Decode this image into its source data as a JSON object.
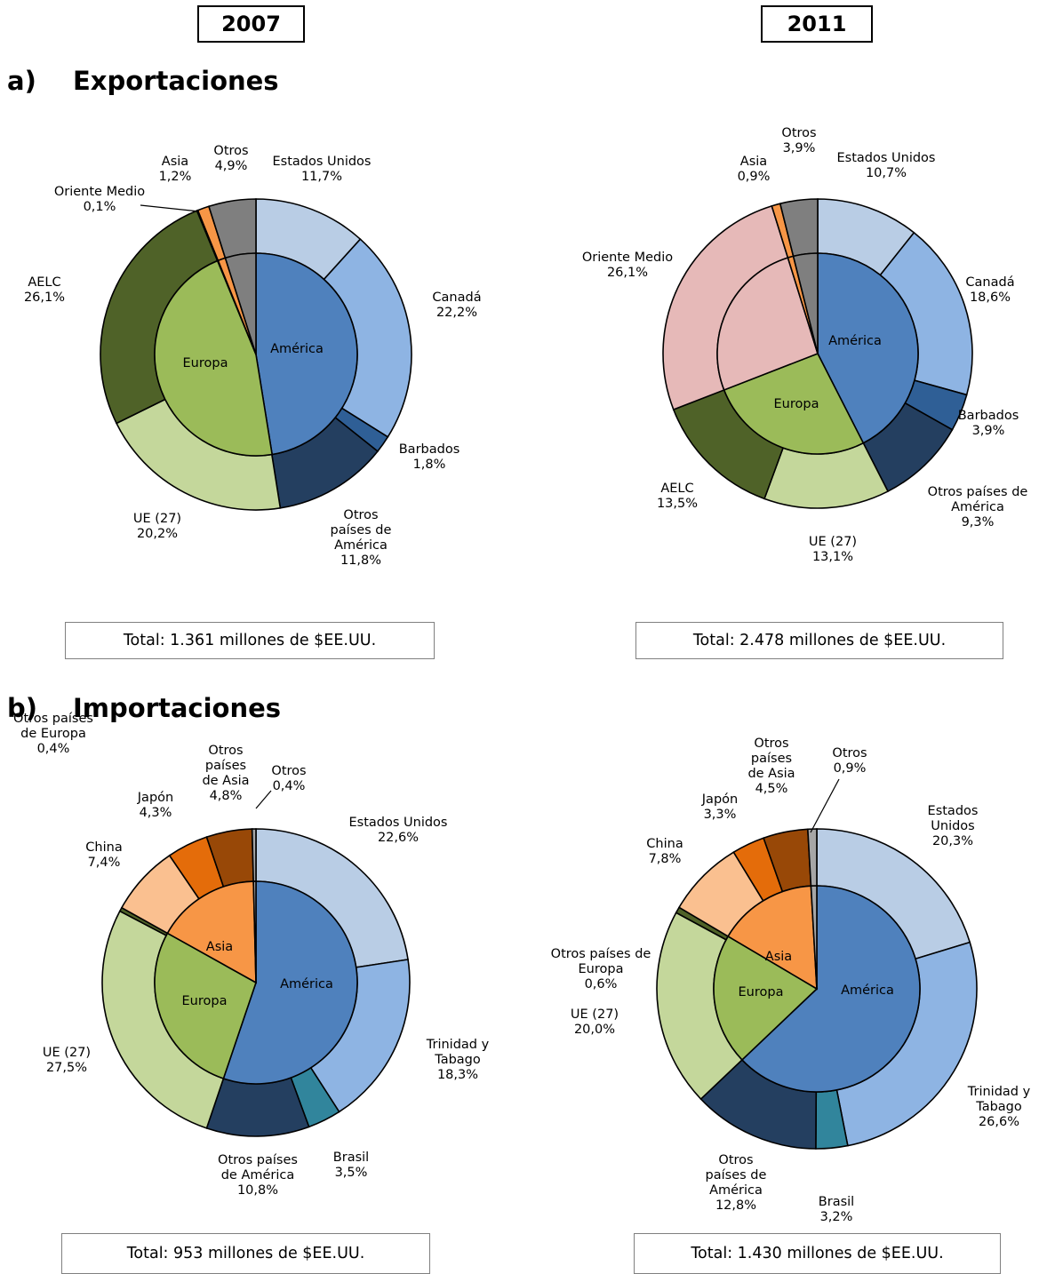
{
  "years": [
    "2007",
    "2011"
  ],
  "sections": [
    {
      "letter": "a)",
      "title": "Exportaciones"
    },
    {
      "letter": "b)",
      "title": "Importaciones"
    }
  ],
  "totals": {
    "exp2007": "Total: 1.361 millones de $EE.UU.",
    "exp2011": "Total: 2.478 millones de $EE.UU.",
    "imp2007": "Total: 953 millones de $EE.UU.",
    "imp2011": "Total: 1.430 millones de $EE.UU."
  },
  "colors": {
    "america_inner": "#4f81bd",
    "europa_inner": "#9bbb59",
    "asia_inner": "#f79646",
    "estados_unidos": "#b9cde5",
    "canada": "#8eb4e3",
    "trinidad": "#8eb4e3",
    "barbados": "#2f5f96",
    "brasil": "#31859c",
    "otros_america": "#243f60",
    "ue27": "#c4d79b",
    "aelc": "#4f6228",
    "otros_europa": "#4f6228",
    "oriente_medio": "#e6b9b8",
    "china": "#fac090",
    "japon": "#e46c0a",
    "otros_asia": "#984807",
    "asia_exp": "#f79646",
    "otros": "#7f7f7f",
    "otros_imp": "#a6a6a6"
  },
  "chart_data": [
    {
      "type": "pie",
      "id": "exp2007",
      "inner": [
        {
          "name": "América",
          "value": 47.5,
          "color": "#4f81bd"
        },
        {
          "name": "Europa",
          "value": 46.4,
          "color": "#9bbb59"
        },
        {
          "name": "",
          "value": 0.1,
          "color": "#e6b9b8"
        },
        {
          "name": "",
          "value": 1.2,
          "color": "#f79646"
        },
        {
          "name": "",
          "value": 4.9,
          "color": "#7f7f7f"
        }
      ],
      "outer": [
        {
          "name": "Estados Unidos",
          "value": 11.7,
          "color": "#b9cde5"
        },
        {
          "name": "Canadá",
          "value": 22.2,
          "color": "#8eb4e3"
        },
        {
          "name": "Barbados",
          "value": 1.8,
          "color": "#2f5f96"
        },
        {
          "name": "Otros países de América",
          "value": 11.8,
          "color": "#243f60"
        },
        {
          "name": "UE (27)",
          "value": 20.2,
          "color": "#c4d79b"
        },
        {
          "name": "AELC",
          "value": 26.1,
          "color": "#4f6228"
        },
        {
          "name": "Oriente Medio",
          "value": 0.1,
          "color": "#e6b9b8"
        },
        {
          "name": "Asia",
          "value": 1.2,
          "color": "#f79646"
        },
        {
          "name": "Otros",
          "value": 4.9,
          "color": "#7f7f7f"
        }
      ],
      "labels": [
        {
          "lines": [
            "Estados Unidos",
            "11,7%"
          ]
        },
        {
          "lines": [
            "Canadá",
            "22,2%"
          ]
        },
        {
          "lines": [
            "Barbados",
            "1,8%"
          ]
        },
        {
          "lines": [
            "Otros",
            "países de",
            "América",
            "11,8%"
          ]
        },
        {
          "lines": [
            "UE (27)",
            "20,2%"
          ]
        },
        {
          "lines": [
            "AELC",
            "26,1%"
          ]
        },
        {
          "lines": [
            "Oriente Medio",
            "0,1%"
          ]
        },
        {
          "lines": [
            "Asia",
            "1,2%"
          ]
        },
        {
          "lines": [
            "Otros",
            "4,9%"
          ]
        }
      ],
      "inner_labels": [
        "América",
        "Europa"
      ]
    },
    {
      "type": "pie",
      "id": "exp2011",
      "inner": [
        {
          "name": "América",
          "value": 42.5,
          "color": "#4f81bd"
        },
        {
          "name": "Europa",
          "value": 26.6,
          "color": "#9bbb59"
        },
        {
          "name": "",
          "value": 26.1,
          "color": "#e6b9b8"
        },
        {
          "name": "",
          "value": 0.9,
          "color": "#f79646"
        },
        {
          "name": "",
          "value": 3.9,
          "color": "#7f7f7f"
        }
      ],
      "outer": [
        {
          "name": "Estados Unidos",
          "value": 10.7,
          "color": "#b9cde5"
        },
        {
          "name": "Canadá",
          "value": 18.6,
          "color": "#8eb4e3"
        },
        {
          "name": "Barbados",
          "value": 3.9,
          "color": "#2f5f96"
        },
        {
          "name": "Otros países de América",
          "value": 9.3,
          "color": "#243f60"
        },
        {
          "name": "UE (27)",
          "value": 13.1,
          "color": "#c4d79b"
        },
        {
          "name": "AELC",
          "value": 13.5,
          "color": "#4f6228"
        },
        {
          "name": "Oriente Medio",
          "value": 26.1,
          "color": "#e6b9b8"
        },
        {
          "name": "Asia",
          "value": 0.9,
          "color": "#f79646"
        },
        {
          "name": "Otros",
          "value": 3.9,
          "color": "#7f7f7f"
        }
      ],
      "labels": [
        {
          "lines": [
            "Estados Unidos",
            "10,7%"
          ]
        },
        {
          "lines": [
            "Canadá",
            "18,6%"
          ]
        },
        {
          "lines": [
            "Barbados",
            "3,9%"
          ]
        },
        {
          "lines": [
            "Otros países de",
            "América",
            "9,3%"
          ]
        },
        {
          "lines": [
            "UE (27)",
            "13,1%"
          ]
        },
        {
          "lines": [
            "AELC",
            "13,5%"
          ]
        },
        {
          "lines": [
            "Oriente Medio",
            "26,1%"
          ]
        },
        {
          "lines": [
            "Asia",
            "0,9%"
          ]
        },
        {
          "lines": [
            "Otros",
            "3,9%"
          ]
        }
      ],
      "inner_labels": [
        "América",
        "Europa"
      ]
    },
    {
      "type": "pie",
      "id": "imp2007",
      "inner": [
        {
          "name": "América",
          "value": 55.2,
          "color": "#4f81bd"
        },
        {
          "name": "Europa",
          "value": 27.9,
          "color": "#9bbb59"
        },
        {
          "name": "Asia",
          "value": 16.5,
          "color": "#f79646"
        },
        {
          "name": "",
          "value": 0.4,
          "color": "#a6a6a6"
        }
      ],
      "outer": [
        {
          "name": "Estados Unidos",
          "value": 22.6,
          "color": "#b9cde5"
        },
        {
          "name": "Trinidad y Tabago",
          "value": 18.3,
          "color": "#8eb4e3"
        },
        {
          "name": "Brasil",
          "value": 3.5,
          "color": "#31859c"
        },
        {
          "name": "Otros países de América",
          "value": 10.8,
          "color": "#243f60"
        },
        {
          "name": "UE (27)",
          "value": 27.5,
          "color": "#c4d79b"
        },
        {
          "name": "Otros países de Europa",
          "value": 0.4,
          "color": "#4f6228"
        },
        {
          "name": "China",
          "value": 7.4,
          "color": "#fac090"
        },
        {
          "name": "Japón",
          "value": 4.3,
          "color": "#e46c0a"
        },
        {
          "name": "Otros países de Asia",
          "value": 4.8,
          "color": "#984807"
        },
        {
          "name": "Otros",
          "value": 0.4,
          "color": "#a6a6a6"
        }
      ],
      "labels": [
        {
          "lines": [
            "Estados Unidos",
            "22,6%"
          ]
        },
        {
          "lines": [
            "Trinidad y",
            "Tabago",
            "18,3%"
          ]
        },
        {
          "lines": [
            "Brasil",
            "3,5%"
          ]
        },
        {
          "lines": [
            "Otros países",
            "de América",
            "10,8%"
          ]
        },
        {
          "lines": [
            "UE (27)",
            "27,5%"
          ]
        },
        {
          "lines": [
            "Otros países",
            "de Europa",
            "0,4%"
          ]
        },
        {
          "lines": [
            "China",
            "7,4%"
          ]
        },
        {
          "lines": [
            "Japón",
            "4,3%"
          ]
        },
        {
          "lines": [
            "Otros",
            "países",
            "de Asia",
            "4,8%"
          ]
        },
        {
          "lines": [
            "Otros",
            "0,4%"
          ]
        }
      ],
      "inner_labels": [
        "América",
        "Europa",
        "Asia"
      ]
    },
    {
      "type": "pie",
      "id": "imp2011",
      "inner": [
        {
          "name": "América",
          "value": 62.9,
          "color": "#4f81bd"
        },
        {
          "name": "Europa",
          "value": 20.6,
          "color": "#9bbb59"
        },
        {
          "name": "Asia",
          "value": 15.6,
          "color": "#f79646"
        },
        {
          "name": "",
          "value": 0.9,
          "color": "#a6a6a6"
        }
      ],
      "outer": [
        {
          "name": "Estados Unidos",
          "value": 20.3,
          "color": "#b9cde5"
        },
        {
          "name": "Trinidad y Tabago",
          "value": 26.6,
          "color": "#8eb4e3"
        },
        {
          "name": "Brasil",
          "value": 3.2,
          "color": "#31859c"
        },
        {
          "name": "Otros países de América",
          "value": 12.8,
          "color": "#243f60"
        },
        {
          "name": "UE (27)",
          "value": 20.0,
          "color": "#c4d79b"
        },
        {
          "name": "Otros países de Europa",
          "value": 0.6,
          "color": "#4f6228"
        },
        {
          "name": "China",
          "value": 7.8,
          "color": "#fac090"
        },
        {
          "name": "Japón",
          "value": 3.3,
          "color": "#e46c0a"
        },
        {
          "name": "Otros países de Asia",
          "value": 4.5,
          "color": "#984807"
        },
        {
          "name": "Otros",
          "value": 0.9,
          "color": "#a6a6a6"
        }
      ],
      "labels": [
        {
          "lines": [
            "Estados",
            "Unidos",
            "20,3%"
          ]
        },
        {
          "lines": [
            "Trinidad y",
            "Tabago",
            "26,6%"
          ]
        },
        {
          "lines": [
            "Brasil",
            "3,2%"
          ]
        },
        {
          "lines": [
            "Otros",
            "países de",
            "América",
            "12,8%"
          ]
        },
        {
          "lines": [
            "UE (27)",
            "20,0%"
          ]
        },
        {
          "lines": [
            "Otros países de",
            "Europa",
            "0,6%"
          ]
        },
        {
          "lines": [
            "China",
            "7,8%"
          ]
        },
        {
          "lines": [
            "Japón",
            "3,3%"
          ]
        },
        {
          "lines": [
            "Otros",
            "países",
            "de Asia",
            "4,5%"
          ]
        },
        {
          "lines": [
            "Otros",
            "0,9%"
          ]
        }
      ],
      "inner_labels": [
        "América",
        "Europa",
        "Asia"
      ]
    }
  ]
}
